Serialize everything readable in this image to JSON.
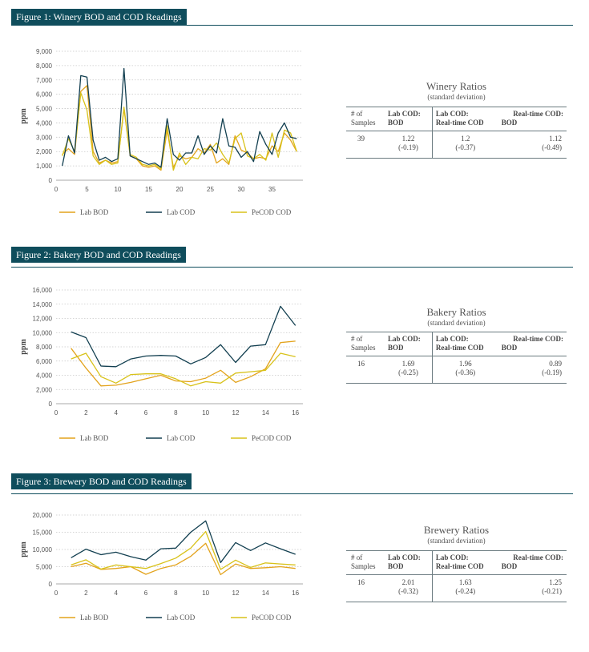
{
  "colors": {
    "lab_bod": "#e3a31c",
    "lab_cod": "#123f50",
    "pecod_cod": "#d8c21a",
    "header_bg": "#0f4d5c"
  },
  "table_headers": {
    "samples_line1": "# of",
    "samples_line2": "Samples",
    "col1_line1": "Lab COD:",
    "col1_line2": "BOD",
    "col2_line1": "Lab COD:",
    "col2_line2": "Real-time COD",
    "col3_line1": "Real-time COD:",
    "col3_line2": "BOD"
  },
  "sections": [
    {
      "figure_title": "Figure 1: Winery BOD and COD Readings",
      "ratios_title": "Winery Ratios",
      "ratios_subtitle": "(standard deviation)",
      "row": {
        "samples": "39",
        "c1": "1.22",
        "c1_sd": "(-0.19)",
        "c2": "1.2",
        "c2_sd": "(-0.37)",
        "c3": "1.12",
        "c3_sd": "(-0.49)"
      }
    },
    {
      "figure_title": "Figure 2: Bakery BOD and COD Readings",
      "ratios_title": "Bakery Ratios",
      "ratios_subtitle": "(standard deviation)",
      "row": {
        "samples": "16",
        "c1": "1.69",
        "c1_sd": "(-0.25)",
        "c2": "1.96",
        "c2_sd": "(-0.36)",
        "c3": "0.89",
        "c3_sd": "(-0.19)"
      }
    },
    {
      "figure_title": "Figure 3: Brewery BOD and COD Readings",
      "ratios_title": "Brewery Ratios",
      "ratios_subtitle": "(standard deviation)",
      "row": {
        "samples": "16",
        "c1": "2.01",
        "c1_sd": "(-0.32)",
        "c2": "1.63",
        "c2_sd": "(-0.24)",
        "c3": "1.25",
        "c3_sd": "(-0.21)"
      }
    }
  ],
  "chart_data": [
    {
      "type": "line",
      "ylabel": "ppm",
      "xlim": [
        0,
        40
      ],
      "ylim": [
        0,
        9000
      ],
      "xticks": [
        0,
        5,
        10,
        15,
        20,
        25,
        30,
        35
      ],
      "xtick_labels": [
        "0",
        "5",
        "10",
        "15",
        "20",
        "25",
        "30",
        "35"
      ],
      "yticks": [
        0,
        1000,
        2000,
        3000,
        4000,
        5000,
        6000,
        7000,
        8000,
        9000
      ],
      "ytick_labels": [
        "0",
        "1,000",
        "2,000",
        "3,000",
        "4,000",
        "5,000",
        "6,000",
        "7,000",
        "8,000",
        "9,000"
      ],
      "grid": "horizontal dotted",
      "legend_position": "bottom",
      "x": [
        1,
        2,
        3,
        4,
        5,
        6,
        7,
        8,
        9,
        10,
        11,
        12,
        13,
        14,
        15,
        16,
        17,
        18,
        19,
        20,
        21,
        22,
        23,
        24,
        25,
        26,
        27,
        28,
        29,
        30,
        31,
        32,
        33,
        34,
        35,
        36,
        37,
        38,
        39
      ],
      "series": [
        {
          "name": "Lab BOD",
          "color": "#e3a31c",
          "values": [
            1800,
            2200,
            1800,
            6200,
            6600,
            2000,
            1200,
            1400,
            1200,
            1300,
            5000,
            1700,
            1500,
            1000,
            900,
            1000,
            700,
            3500,
            900,
            1700,
            1500,
            1600,
            2200,
            1900,
            2500,
            1200,
            1500,
            1100,
            3100,
            2100,
            1900,
            1500,
            1600,
            1500,
            2400,
            2000,
            3300,
            2800,
            2000
          ]
        },
        {
          "name": "Lab COD",
          "color": "#123f50",
          "values": [
            1000,
            3100,
            1900,
            7300,
            7200,
            2800,
            1400,
            1600,
            1300,
            1500,
            7800,
            1700,
            1500,
            1300,
            1100,
            1200,
            900,
            4300,
            1800,
            1400,
            1900,
            1900,
            3100,
            1800,
            2400,
            1900,
            4300,
            2400,
            2300,
            1600,
            2000,
            1300,
            3400,
            2500,
            1800,
            3300,
            4000,
            3000,
            2900
          ]
        },
        {
          "name": "PeCOD COD",
          "color": "#d8c21a",
          "values": [
            1700,
            2900,
            2000,
            6100,
            4900,
            1700,
            1100,
            1400,
            1100,
            1200,
            5100,
            1800,
            1600,
            1100,
            1000,
            1100,
            800,
            3800,
            700,
            1900,
            1100,
            1600,
            1500,
            2200,
            2100,
            2600,
            1800,
            1200,
            2900,
            3300,
            1700,
            1500,
            1800,
            1400,
            3300,
            1600,
            3500,
            3300,
            2000
          ]
        }
      ]
    },
    {
      "type": "line",
      "ylabel": "ppm",
      "xlim": [
        0,
        16.5
      ],
      "ylim": [
        0,
        16000
      ],
      "xticks": [
        0,
        2,
        4,
        6,
        8,
        10,
        12,
        14,
        16
      ],
      "xtick_labels": [
        "0",
        "2",
        "4",
        "6",
        "8",
        "10",
        "12",
        "14",
        "16"
      ],
      "yticks": [
        0,
        2000,
        4000,
        6000,
        8000,
        10000,
        12000,
        14000,
        16000
      ],
      "ytick_labels": [
        "0",
        "2,000",
        "4,000",
        "6,000",
        "8,000",
        "10,000",
        "12,000",
        "14,000",
        "16,000"
      ],
      "grid": "horizontal dotted",
      "legend_position": "bottom",
      "x": [
        1,
        2,
        3,
        4,
        5,
        6,
        7,
        8,
        9,
        10,
        11,
        12,
        13,
        14,
        15,
        16
      ],
      "series": [
        {
          "name": "Lab BOD",
          "color": "#e3a31c",
          "values": [
            7800,
            5000,
            2500,
            2600,
            3000,
            3500,
            4000,
            3200,
            3100,
            3600,
            4700,
            3000,
            3800,
            4900,
            8600,
            8800
          ]
        },
        {
          "name": "Lab COD",
          "color": "#123f50",
          "values": [
            10100,
            9300,
            5300,
            5200,
            6300,
            6700,
            6800,
            6700,
            5600,
            6500,
            8300,
            5800,
            8100,
            8300,
            13700,
            11000
          ]
        },
        {
          "name": "PeCOD COD",
          "color": "#d8c21a",
          "values": [
            6300,
            7100,
            3800,
            2900,
            4100,
            4200,
            4200,
            3500,
            2500,
            3100,
            2900,
            4300,
            4500,
            4700,
            7100,
            6600
          ]
        }
      ]
    },
    {
      "type": "line",
      "ylabel": "ppm",
      "xlim": [
        0,
        16.5
      ],
      "ylim": [
        0,
        20000
      ],
      "xticks": [
        0,
        2,
        4,
        6,
        8,
        10,
        12,
        14,
        16
      ],
      "xtick_labels": [
        "0",
        "2",
        "4",
        "6",
        "8",
        "10",
        "12",
        "14",
        "16"
      ],
      "yticks": [
        0,
        5000,
        10000,
        15000,
        20000
      ],
      "ytick_labels": [
        "0",
        "5,000",
        "10,000",
        "15,000",
        "20,000"
      ],
      "grid": "horizontal dotted",
      "legend_position": "bottom",
      "x": [
        1,
        2,
        3,
        4,
        5,
        6,
        7,
        8,
        9,
        10,
        11,
        12,
        13,
        14,
        15,
        16
      ],
      "series": [
        {
          "name": "Lab BOD",
          "color": "#e3a31c",
          "values": [
            5000,
            6000,
            4200,
            4500,
            5000,
            2800,
            4500,
            5500,
            8000,
            11800,
            2700,
            5800,
            4500,
            4700,
            5000,
            4500
          ]
        },
        {
          "name": "Lab COD",
          "color": "#123f50",
          "values": [
            7600,
            10100,
            8500,
            9200,
            7900,
            6900,
            10200,
            10400,
            15000,
            18300,
            6200,
            12000,
            9700,
            11900,
            10200,
            8600
          ]
        },
        {
          "name": "PeCOD COD",
          "color": "#d8c21a",
          "values": [
            5500,
            7000,
            4300,
            5500,
            5000,
            4500,
            5900,
            7500,
            10400,
            15200,
            4200,
            6900,
            4800,
            6100,
            5800,
            5500
          ]
        }
      ]
    }
  ]
}
